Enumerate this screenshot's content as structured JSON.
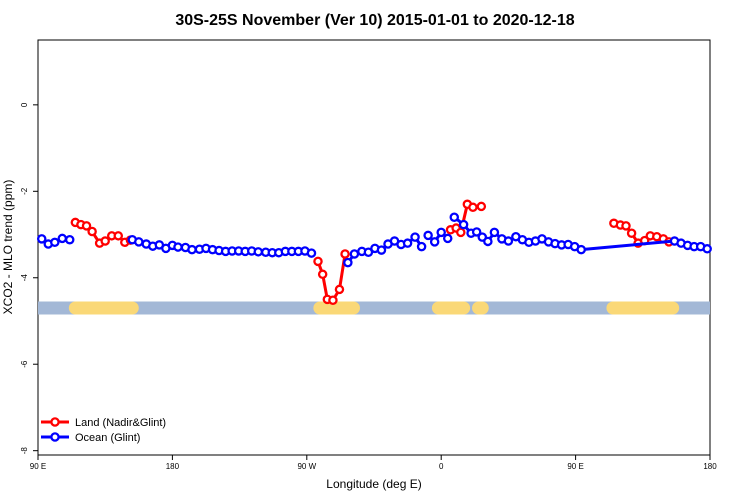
{
  "chart_data": {
    "type": "line",
    "title": "30S-25S November (Ver 10)   2015-01-01 to 2020-12-18",
    "xlabel": "Longitude (deg E)",
    "ylabel": "XCO2 - MLO trend (ppm)",
    "xlim": [
      90,
      450
    ],
    "ylim": [
      -8.1,
      1.5
    ],
    "x_ticks": [
      {
        "value": 90,
        "label": "90 E"
      },
      {
        "value": 162,
        "label": "180"
      },
      {
        "value": 234,
        "label": "90 W"
      },
      {
        "value": 306,
        "label": "0"
      },
      {
        "value": 378,
        "label": "90 E"
      },
      {
        "value": 450,
        "label": "180"
      }
    ],
    "y_ticks": [
      {
        "value": 0,
        "label": "0"
      },
      {
        "value": -2,
        "label": "-2"
      },
      {
        "value": -4,
        "label": "-4"
      },
      {
        "value": -6,
        "label": "-6"
      },
      {
        "value": -8,
        "label": "-8"
      }
    ],
    "grid": false,
    "legend_position": "bottom-left",
    "land_band": {
      "y": -4.7,
      "ocean_color": "#a3b8d6",
      "land_color": "#fad877",
      "land_segments": [
        [
          110,
          140.5
        ],
        [
          241,
          259
        ],
        [
          304.5,
          318
        ],
        [
          326,
          328
        ],
        [
          398,
          430
        ]
      ]
    },
    "series": [
      {
        "name": "Land (Nadir&Glint)",
        "color": "#ff0000",
        "x": [
          110,
          113,
          116,
          119,
          123,
          126,
          129.5,
          133,
          136.5,
          139.5,
          240,
          242.5,
          245,
          248,
          251.5,
          254.5,
          311,
          314,
          316.5,
          320,
          323,
          327.5,
          398.5,
          402,
          405,
          408,
          411.5,
          415,
          418,
          421.5,
          425,
          428
        ],
        "y": [
          -2.72,
          -2.77,
          -2.8,
          -2.93,
          -3.2,
          -3.15,
          -3.03,
          -3.03,
          -3.18,
          -3.13,
          -3.62,
          -3.92,
          -4.5,
          -4.52,
          -4.27,
          -3.45,
          -2.89,
          -2.85,
          -2.95,
          -2.3,
          -2.37,
          -2.35,
          -2.74,
          -2.78,
          -2.8,
          -2.97,
          -3.2,
          -3.14,
          -3.03,
          -3.05,
          -3.1,
          -3.17
        ],
        "segments": [
          [
            0,
            9
          ],
          [
            10,
            15
          ],
          [
            16,
            19
          ],
          [
            20,
            20
          ],
          [
            21,
            21
          ],
          [
            22,
            31
          ]
        ]
      },
      {
        "name": "Ocean (Glint)",
        "color": "#0000ff",
        "x": [
          92,
          95.5,
          99,
          103,
          107,
          140.5,
          144,
          148,
          151.5,
          155,
          158.5,
          162,
          165,
          169,
          172.5,
          176.5,
          180,
          183.5,
          187,
          190.5,
          194,
          197.5,
          201,
          204.5,
          208,
          212,
          215.5,
          219,
          222.5,
          226,
          229.5,
          233,
          236.5,
          256,
          259.5,
          263.5,
          267,
          270.5,
          274,
          277.5,
          281,
          284.5,
          288,
          292,
          295.5,
          299,
          302.5,
          306,
          309.5,
          313,
          318,
          322,
          325,
          328,
          331,
          334.5,
          338.5,
          342,
          346,
          349.5,
          353,
          356.5,
          360,
          363.5,
          367,
          370.5,
          374,
          377.5,
          381,
          431,
          434.5,
          438,
          441.5,
          445,
          448.5
        ],
        "y": [
          -3.1,
          -3.22,
          -3.18,
          -3.09,
          -3.12,
          -3.12,
          -3.17,
          -3.22,
          -3.27,
          -3.24,
          -3.32,
          -3.25,
          -3.29,
          -3.3,
          -3.35,
          -3.34,
          -3.32,
          -3.35,
          -3.37,
          -3.39,
          -3.38,
          -3.38,
          -3.39,
          -3.38,
          -3.4,
          -3.41,
          -3.42,
          -3.42,
          -3.39,
          -3.39,
          -3.39,
          -3.38,
          -3.43,
          -3.65,
          -3.45,
          -3.39,
          -3.41,
          -3.32,
          -3.36,
          -3.22,
          -3.15,
          -3.23,
          -3.2,
          -3.06,
          -3.28,
          -3.02,
          -3.17,
          -2.95,
          -3.09,
          -2.6,
          -2.77,
          -2.97,
          -2.94,
          -3.06,
          -3.16,
          -2.95,
          -3.1,
          -3.15,
          -3.05,
          -3.12,
          -3.18,
          -3.15,
          -3.1,
          -3.17,
          -3.21,
          -3.24,
          -3.23,
          -3.28,
          -3.35,
          -3.15,
          -3.2,
          -3.25,
          -3.28,
          -3.28,
          -3.33
        ],
        "segments": [
          [
            0,
            4
          ],
          [
            5,
            32
          ],
          [
            33,
            44
          ],
          [
            45,
            48
          ],
          [
            49,
            74
          ]
        ]
      }
    ]
  }
}
